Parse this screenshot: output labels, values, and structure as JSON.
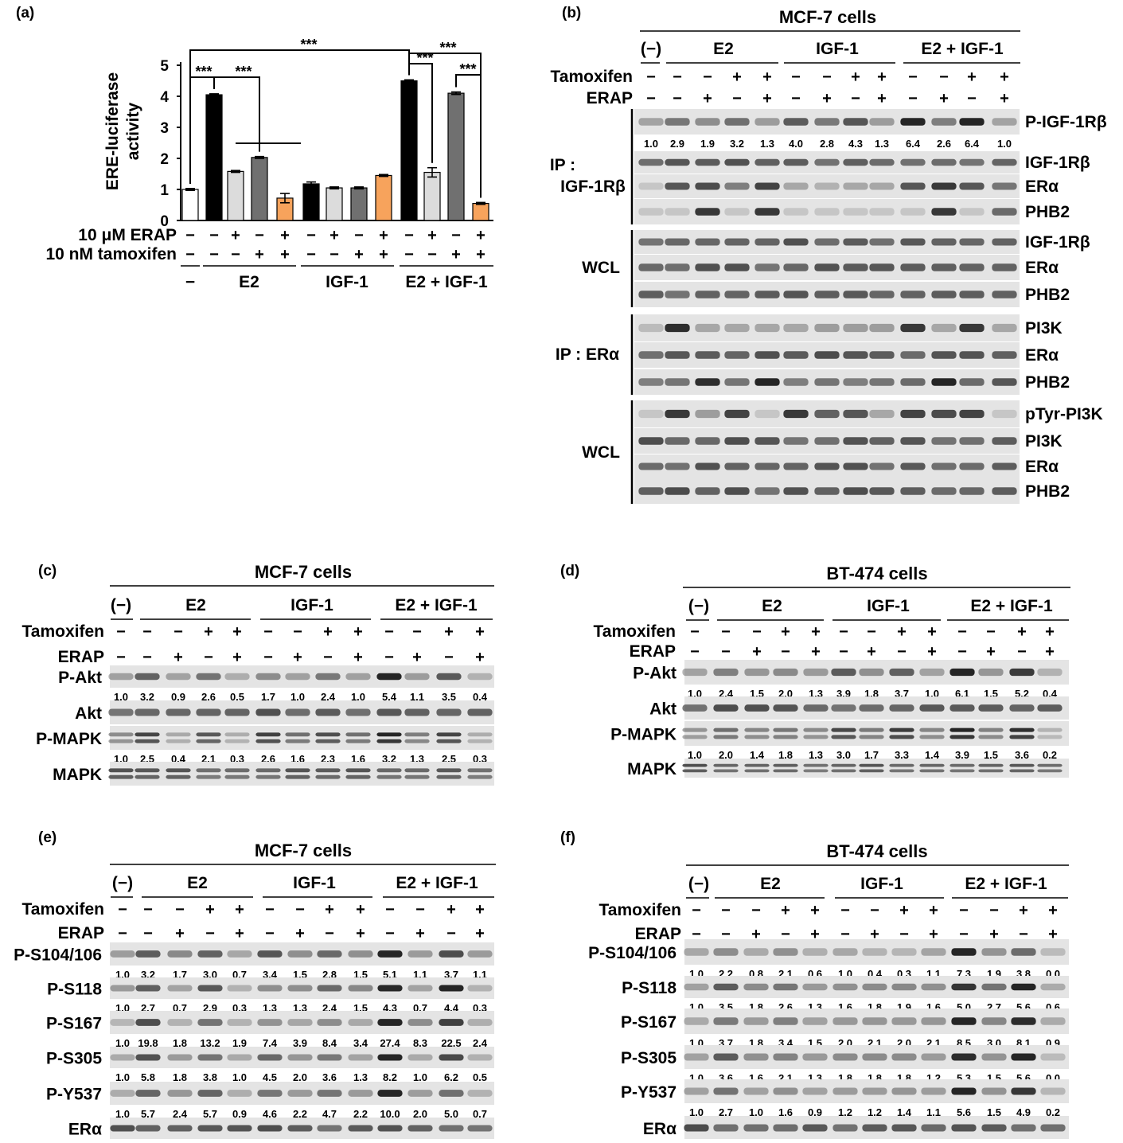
{
  "panel_a": {
    "label": "(a)",
    "chart_data": {
      "type": "bar",
      "ylabel_lines": [
        "ERE-luciferase",
        "activity"
      ],
      "ylim": [
        0,
        5
      ],
      "yticks": [
        "0",
        "1",
        "2",
        "3",
        "4",
        "5"
      ],
      "values": [
        1.0,
        4.05,
        1.58,
        2.03,
        0.72,
        1.18,
        1.05,
        1.05,
        1.45,
        4.5,
        1.55,
        4.1,
        0.55
      ],
      "errors": [
        0.03,
        0.03,
        0.03,
        0.03,
        0.15,
        0.06,
        0.03,
        0.03,
        0.03,
        0.03,
        0.15,
        0.04,
        0.03
      ],
      "colors": [
        "#ffffff",
        "#000000",
        "#dcdcdc",
        "#707070",
        "#f7a35c",
        "#000000",
        "#dcdcdc",
        "#707070",
        "#f7a35c",
        "#000000",
        "#dcdcdc",
        "#707070",
        "#f7a35c"
      ],
      "significance": [
        "***",
        "***",
        "***",
        "***",
        "***",
        "***"
      ],
      "rows": [
        {
          "label": "10 μM ERAP",
          "values": [
            "−",
            "−",
            "+",
            "−",
            "+",
            "−",
            "+",
            "−",
            "+",
            "−",
            "+",
            "−",
            "+"
          ]
        },
        {
          "label": "10 nM tamoxifen",
          "values": [
            "−",
            "−",
            "−",
            "+",
            "+",
            "−",
            "−",
            "+",
            "+",
            "−",
            "−",
            "+",
            "+"
          ]
        }
      ],
      "groups": [
        "−",
        "E2",
        "IGF-1",
        "E2 + IGF-1"
      ]
    }
  },
  "panel_b": {
    "label": "(b)",
    "title": "MCF-7 cells",
    "groups": [
      "(−)",
      "E2",
      "IGF-1",
      "E2 + IGF-1"
    ],
    "tamoxifen_label": "Tamoxifen",
    "erap_label": "ERAP",
    "tamoxifen": [
      "−",
      "−",
      "−",
      "+",
      "+",
      "−",
      "−",
      "+",
      "+",
      "−",
      "−",
      "+",
      "+"
    ],
    "erap": [
      "−",
      "−",
      "+",
      "−",
      "+",
      "−",
      "+",
      "−",
      "+",
      "−",
      "+",
      "−",
      "+"
    ],
    "section_labels": [
      "IP :",
      "IGF-1Rβ",
      "WCL",
      "IP : ERα",
      "WCL"
    ],
    "bands": [
      "P-IGF-1Rβ",
      "IGF-1Rβ",
      "ERα",
      "PHB2",
      "IGF-1Rβ",
      "ERα",
      "PHB2",
      "PI3K",
      "ERα",
      "PHB2",
      "pTyr-PI3K",
      "PI3K",
      "ERα",
      "PHB2"
    ],
    "quant": [
      "1.0",
      "2.9",
      "1.9",
      "3.2",
      "1.3",
      "4.0",
      "2.8",
      "4.3",
      "1.3",
      "6.4",
      "2.6",
      "6.4",
      "1.0"
    ]
  },
  "panel_c": {
    "label": "(c)",
    "title": "MCF-7 cells",
    "groups": [
      "(−)",
      "E2",
      "IGF-1",
      "E2 + IGF-1"
    ],
    "tamoxifen_label": "Tamoxifen",
    "erap_label": "ERAP",
    "tamoxifen": [
      "−",
      "−",
      "−",
      "+",
      "+",
      "−",
      "−",
      "+",
      "+",
      "−",
      "−",
      "+",
      "+"
    ],
    "erap": [
      "−",
      "−",
      "+",
      "−",
      "+",
      "−",
      "+",
      "−",
      "+",
      "−",
      "+",
      "−",
      "+"
    ],
    "bands": [
      {
        "name": "P-Akt",
        "quant": [
          "1.0",
          "3.2",
          "0.9",
          "2.6",
          "0.5",
          "1.7",
          "1.0",
          "2.4",
          "1.0",
          "5.4",
          "1.1",
          "3.5",
          "0.4"
        ]
      },
      {
        "name": "Akt"
      },
      {
        "name": "P-MAPK",
        "quant": [
          "1.0",
          "2.5",
          "0.4",
          "2.1",
          "0.3",
          "2.6",
          "1.6",
          "2.3",
          "1.6",
          "3.2",
          "1.3",
          "2.5",
          "0.3"
        ]
      },
      {
        "name": "MAPK"
      }
    ]
  },
  "panel_d": {
    "label": "(d)",
    "title": "BT-474 cells",
    "groups": [
      "(−)",
      "E2",
      "IGF-1",
      "E2 + IGF-1"
    ],
    "tamoxifen_label": "Tamoxifen",
    "erap_label": "ERAP",
    "tamoxifen": [
      "−",
      "−",
      "−",
      "+",
      "+",
      "−",
      "−",
      "+",
      "+",
      "−",
      "−",
      "+",
      "+"
    ],
    "erap": [
      "−",
      "−",
      "+",
      "−",
      "+",
      "−",
      "+",
      "−",
      "+",
      "−",
      "+",
      "−",
      "+"
    ],
    "bands": [
      {
        "name": "P-Akt",
        "quant": [
          "1.0",
          "2.4",
          "1.5",
          "2.0",
          "1.3",
          "3.9",
          "1.8",
          "3.7",
          "1.0",
          "6.1",
          "1.5",
          "5.2",
          "0.4"
        ]
      },
      {
        "name": "Akt"
      },
      {
        "name": "P-MAPK",
        "quant": [
          "1.0",
          "2.0",
          "1.4",
          "1.8",
          "1.3",
          "3.0",
          "1.7",
          "3.3",
          "1.4",
          "3.9",
          "1.5",
          "3.6",
          "0.2"
        ]
      },
      {
        "name": "MAPK"
      }
    ]
  },
  "panel_e": {
    "label": "(e)",
    "title": "MCF-7 cells",
    "groups": [
      "(−)",
      "E2",
      "IGF-1",
      "E2 + IGF-1"
    ],
    "tamoxifen_label": "Tamoxifen",
    "erap_label": "ERAP",
    "tamoxifen": [
      "−",
      "−",
      "−",
      "+",
      "+",
      "−",
      "−",
      "+",
      "+",
      "−",
      "−",
      "+",
      "+"
    ],
    "erap": [
      "−",
      "−",
      "+",
      "−",
      "+",
      "−",
      "+",
      "−",
      "+",
      "−",
      "+",
      "−",
      "+"
    ],
    "bands": [
      {
        "name": "P-S104/106",
        "quant": [
          "1.0",
          "3.2",
          "1.7",
          "3.0",
          "0.7",
          "3.4",
          "1.5",
          "2.8",
          "1.5",
          "5.1",
          "1.1",
          "3.7",
          "1.1"
        ]
      },
      {
        "name": "P-S118",
        "quant": [
          "1.0",
          "2.7",
          "0.7",
          "2.9",
          "0.3",
          "1.3",
          "1.3",
          "2.4",
          "1.5",
          "4.3",
          "0.7",
          "4.4",
          "0.3"
        ]
      },
      {
        "name": "P-S167",
        "quant": [
          "1.0",
          "19.8",
          "1.8",
          "13.2",
          "1.9",
          "7.4",
          "3.9",
          "8.4",
          "3.4",
          "27.4",
          "8.3",
          "22.5",
          "2.4"
        ]
      },
      {
        "name": "P-S305",
        "quant": [
          "1.0",
          "5.8",
          "1.8",
          "3.8",
          "1.0",
          "4.5",
          "2.0",
          "3.6",
          "1.3",
          "8.2",
          "1.0",
          "6.2",
          "0.5"
        ]
      },
      {
        "name": "P-Y537",
        "quant": [
          "1.0",
          "5.7",
          "2.4",
          "5.7",
          "0.9",
          "4.6",
          "2.2",
          "4.7",
          "2.2",
          "10.0",
          "2.0",
          "5.0",
          "0.7"
        ]
      },
      {
        "name": "ERα"
      }
    ]
  },
  "panel_f": {
    "label": "(f)",
    "title": "BT-474 cells",
    "groups": [
      "(−)",
      "E2",
      "IGF-1",
      "E2 + IGF-1"
    ],
    "tamoxifen_label": "Tamoxifen",
    "erap_label": "ERAP",
    "tamoxifen": [
      "−",
      "−",
      "−",
      "+",
      "+",
      "−",
      "−",
      "+",
      "+",
      "−",
      "−",
      "+",
      "+"
    ],
    "erap": [
      "−",
      "−",
      "+",
      "−",
      "+",
      "−",
      "+",
      "−",
      "+",
      "−",
      "+",
      "−",
      "+"
    ],
    "bands": [
      {
        "name": "P-S104/106",
        "quant": [
          "1.0",
          "2.2",
          "0.8",
          "2.1",
          "0.6",
          "1.0",
          "0.4",
          "0.3",
          "1.1",
          "7.3",
          "1.9",
          "3.8",
          "0.0"
        ]
      },
      {
        "name": "P-S118",
        "quant": [
          "1.0",
          "3.5",
          "1.8",
          "2.6",
          "1.3",
          "1.6",
          "1.8",
          "1.9",
          "1.6",
          "5.0",
          "2.7",
          "5.6",
          "0.6"
        ]
      },
      {
        "name": "P-S167",
        "quant": [
          "1.0",
          "3.7",
          "1.8",
          "3.4",
          "1.5",
          "2.0",
          "2.1",
          "2.0",
          "2.1",
          "8.5",
          "3.0",
          "8.1",
          "0.9"
        ]
      },
      {
        "name": "P-S305",
        "quant": [
          "1.0",
          "3.6",
          "1.6",
          "2.1",
          "1.3",
          "1.8",
          "1.8",
          "1.8",
          "1.2",
          "5.3",
          "1.5",
          "5.6",
          "0.0"
        ]
      },
      {
        "name": "P-Y537",
        "quant": [
          "1.0",
          "2.7",
          "1.0",
          "1.6",
          "0.9",
          "1.2",
          "1.2",
          "1.4",
          "1.1",
          "5.6",
          "1.5",
          "4.9",
          "0.2"
        ]
      },
      {
        "name": "ERα"
      }
    ]
  }
}
